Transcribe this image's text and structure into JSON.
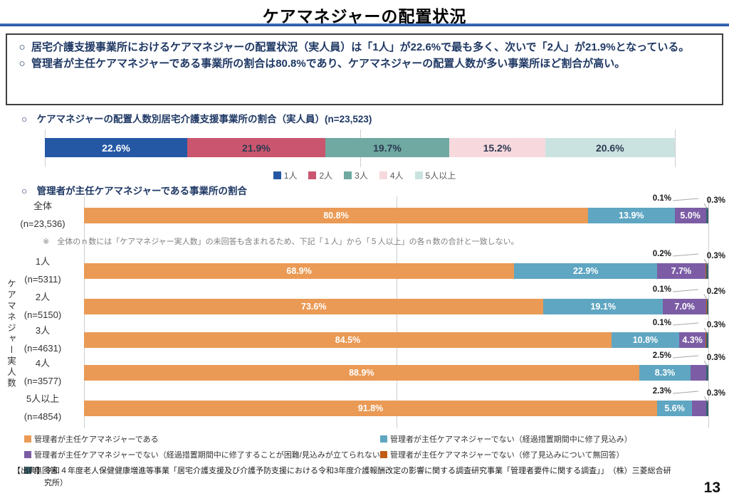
{
  "slide": {
    "title": "ケアマネジャーの配置状況",
    "page_number": "13"
  },
  "summary_box": {
    "marker": "○",
    "bullets": [
      "居宅介護支援事業所におけるケアマネジャーの配置状況（実人員）は「1人」が22.6%で最も多く、次いで「2人」が21.9%となっている。",
      "管理者が主任ケアマネジャーである事業所の割合は80.8%であり、ケアマネジャーの配置人数が多い事業所ほど割合が高い。"
    ]
  },
  "chart1": {
    "heading": "○　ケアマネジャーの配置人数別居宅介護支援事業所の割合（実人員）(n=23,523)"
  },
  "chart2": {
    "heading": "○　管理者が主任ケアマネジャーである事業所の割合",
    "note": "※　全体のｎ数には「ケアマネジャー実人数」の未回答も含まれるため、下記「１人」から「５人以上」の各ｎ数の合計と一致しない。",
    "ylabel": "ケアマネジャー実人数"
  },
  "source": {
    "text": "【出典】令和４年度老人保健健康増進等事業「居宅介護支援及び介護予防支援における令和3年度介護報酬改定の影響に関する調査研究事業「管理者要件に関する調査」」　（株）三菱総合研究所）"
  },
  "chart_data": [
    {
      "type": "bar",
      "subtype": "stacked-horizontal",
      "title": "ケアマネジャーの配置人数別居宅介護支援事業所の割合（実人員）",
      "n_label": "(n=23,523)",
      "categories": [
        "1人",
        "2人",
        "3人",
        "4人",
        "5人以上"
      ],
      "values": [
        22.6,
        21.9,
        19.7,
        15.2,
        20.6
      ],
      "unit": "%",
      "xlim": [
        0,
        100
      ],
      "grid": [
        0,
        50,
        100
      ],
      "colors": [
        "#2458A4",
        "#C9566E",
        "#6FA9A1",
        "#F7D9DD",
        "#CBE3E0"
      ],
      "label_colors": [
        "#FFFFFF",
        "#2C3A52",
        "#2C3A52",
        "#2C3A52",
        "#2C3A52"
      ],
      "legend_position": "bottom"
    },
    {
      "type": "bar",
      "subtype": "stacked-horizontal",
      "title": "管理者が主任ケアマネジャーである事業所の割合",
      "ylabel": "ケアマネジャー実人数",
      "xlim": [
        0,
        100
      ],
      "grid": [
        0,
        50,
        100
      ],
      "unit": "%",
      "series_labels": [
        "管理者が主任ケアマネジャーである",
        "管理者が主任ケアマネジャーでない（経過措置期間中に修了見込み）",
        "管理者が主任ケアマネジャーでない（経過措置期間中に修了することが困難/見込みが立てられない）",
        "管理者が主任ケアマネジャーでない（修了見込みについて無回答）",
        "無回答"
      ],
      "colors": [
        "#EA9A55",
        "#5FA6C2",
        "#7C5DA5",
        "#C05B13",
        "#38636E"
      ],
      "legend_rows": [
        [
          0,
          1
        ],
        [
          2,
          3
        ],
        [
          4
        ]
      ],
      "rows": [
        {
          "label": "全体",
          "n_label": "(n=23,536)",
          "values": [
            80.8,
            13.9,
            5.0,
            0.1,
            0.3
          ],
          "callout_left": "0.1%",
          "callout_right": "0.3%"
        },
        {
          "label": "1人",
          "n_label": "(n=5311)",
          "values": [
            68.9,
            22.9,
            7.7,
            0.2,
            0.3
          ],
          "callout_left": "0.2%",
          "callout_right": "0.3%"
        },
        {
          "label": "2人",
          "n_label": "(n=5150)",
          "values": [
            73.6,
            19.1,
            7.0,
            0.1,
            0.2
          ],
          "callout_left": "0.1%",
          "callout_right": "0.2%"
        },
        {
          "label": "3人",
          "n_label": "(n=4631)",
          "values": [
            84.5,
            10.8,
            4.3,
            0.1,
            0.3
          ],
          "callout_left": "0.1%",
          "callout_right": "0.3%"
        },
        {
          "label": "4人",
          "n_label": "(n=3577)",
          "values": [
            88.9,
            8.3,
            2.5,
            0.0,
            0.3
          ],
          "callout_left": "2.5%",
          "callout_right": "0.3%"
        },
        {
          "label": "5人以上",
          "n_label": "(n=4854)",
          "values": [
            91.8,
            5.6,
            2.3,
            0.0,
            0.3
          ],
          "callout_left": "2.3%",
          "callout_right": "0.3%"
        }
      ]
    }
  ]
}
